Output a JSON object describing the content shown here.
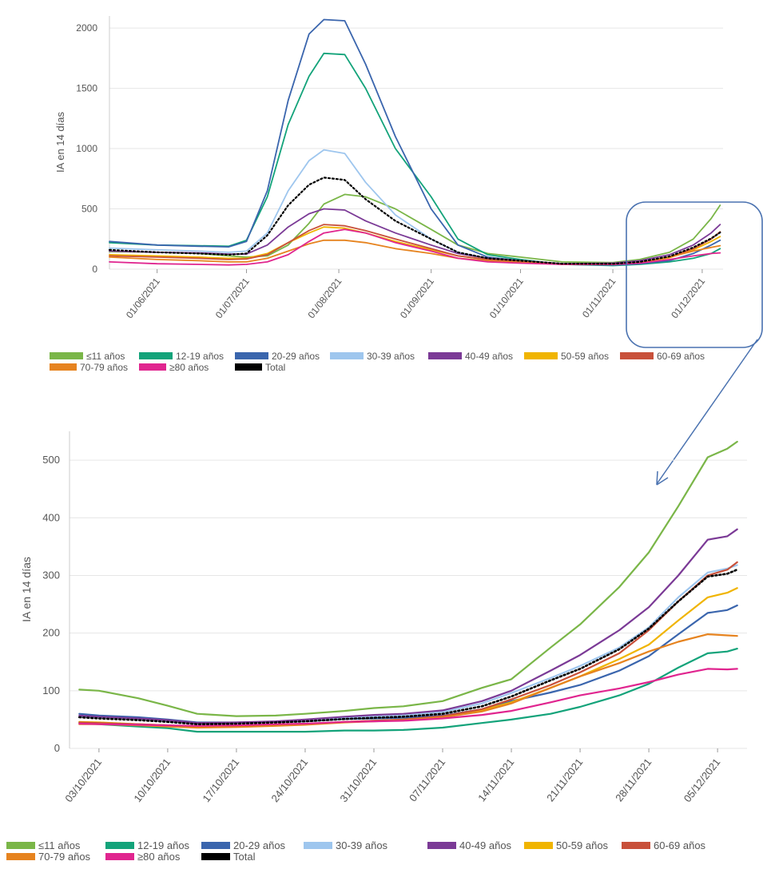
{
  "colors": {
    "<11": "#7ab648",
    "12-19": "#13a37a",
    "20-29": "#3a65ad",
    "30-39": "#9ec6ee",
    "40-49": "#7b3a96",
    "50-59": "#f0b400",
    "60-69": "#c8503a",
    "70-79": "#e6831f",
    ">=80": "#e0258f",
    "total": "#000000"
  },
  "legend": {
    "items": [
      {
        "key": "<11",
        "label": "≤11 años"
      },
      {
        "key": "12-19",
        "label": "12-19 años"
      },
      {
        "key": "20-29",
        "label": "20-29 años"
      },
      {
        "key": "30-39",
        "label": "30-39 años"
      },
      {
        "key": "40-49",
        "label": "40-49 años"
      },
      {
        "key": "50-59",
        "label": "50-59 años"
      },
      {
        "key": "60-69",
        "label": "60-69 años"
      },
      {
        "key": "70-79",
        "label": "70-79 años"
      },
      {
        "key": ">=80",
        "label": "≥80 años"
      },
      {
        "key": "total",
        "label": "Total"
      }
    ]
  },
  "chart_data": [
    {
      "type": "line",
      "title": "",
      "ylabel": "IA en 14 días",
      "xlabel": "",
      "ylim": [
        0,
        2100
      ],
      "xlim": [
        "2021-05-16",
        "2021-12-08"
      ],
      "yticks": [
        0,
        500,
        1000,
        1500,
        2000
      ],
      "xticks": [
        "01/06/2021",
        "01/07/2021",
        "01/08/2021",
        "01/09/2021",
        "01/10/2021",
        "01/11/2021",
        "01/12/2021"
      ],
      "x": [
        "2021-05-16",
        "2021-06-01",
        "2021-06-15",
        "2021-06-25",
        "2021-07-01",
        "2021-07-08",
        "2021-07-15",
        "2021-07-22",
        "2021-07-27",
        "2021-08-03",
        "2021-08-10",
        "2021-08-20",
        "2021-09-01",
        "2021-09-10",
        "2021-09-20",
        "2021-10-01",
        "2021-10-15",
        "2021-11-01",
        "2021-11-10",
        "2021-11-20",
        "2021-11-28",
        "2021-12-04",
        "2021-12-07"
      ],
      "series": [
        {
          "key": "<11",
          "name": "≤11 años",
          "values": [
            145,
            140,
            130,
            110,
            100,
            110,
            200,
            380,
            540,
            620,
            600,
            500,
            330,
            200,
            130,
            100,
            60,
            55,
            80,
            140,
            250,
            420,
            530
          ]
        },
        {
          "key": "12-19",
          "name": "12-19 años",
          "values": [
            220,
            200,
            195,
            190,
            240,
            600,
            1200,
            1600,
            1790,
            1780,
            1500,
            1000,
            600,
            250,
            120,
            80,
            40,
            30,
            40,
            60,
            90,
            130,
            170
          ]
        },
        {
          "key": "20-29",
          "name": "20-29 años",
          "values": [
            230,
            200,
            190,
            185,
            230,
            650,
            1400,
            1950,
            2070,
            2060,
            1700,
            1100,
            500,
            200,
            100,
            70,
            40,
            35,
            45,
            70,
            130,
            200,
            240
          ]
        },
        {
          "key": "30-39",
          "name": "30-39 años",
          "values": [
            175,
            160,
            150,
            140,
            150,
            300,
            650,
            900,
            990,
            960,
            720,
            450,
            250,
            140,
            90,
            70,
            45,
            45,
            60,
            100,
            170,
            250,
            300
          ]
        },
        {
          "key": "40-49",
          "name": "40-49 años",
          "values": [
            150,
            140,
            135,
            125,
            125,
            200,
            350,
            460,
            500,
            490,
            400,
            300,
            200,
            130,
            90,
            70,
            45,
            50,
            70,
            120,
            200,
            300,
            370
          ]
        },
        {
          "key": "50-59",
          "name": "50-59 años",
          "values": [
            120,
            110,
            100,
            90,
            90,
            130,
            220,
            300,
            350,
            340,
            300,
            230,
            160,
            110,
            80,
            65,
            40,
            40,
            55,
            95,
            160,
            230,
            270
          ]
        },
        {
          "key": "60-69",
          "name": "60-69 años",
          "values": [
            110,
            100,
            90,
            80,
            85,
            120,
            220,
            320,
            370,
            360,
            320,
            250,
            170,
            110,
            80,
            60,
            40,
            40,
            55,
            100,
            170,
            250,
            310
          ]
        },
        {
          "key": "70-79",
          "name": "70-79 años",
          "values": [
            100,
            80,
            70,
            60,
            60,
            90,
            150,
            210,
            240,
            240,
            220,
            170,
            130,
            90,
            70,
            55,
            40,
            40,
            55,
            100,
            150,
            180,
            195
          ]
        },
        {
          "key": ">=80",
          "name": "≥80 años",
          "values": [
            60,
            45,
            40,
            35,
            40,
            60,
            120,
            230,
            300,
            330,
            300,
            220,
            150,
            90,
            60,
            50,
            40,
            40,
            50,
            80,
            110,
            130,
            135
          ]
        },
        {
          "key": "total",
          "name": "Total",
          "values": [
            160,
            140,
            130,
            120,
            130,
            280,
            530,
            700,
            760,
            740,
            580,
            400,
            250,
            140,
            90,
            70,
            45,
            45,
            60,
            105,
            180,
            255,
            305
          ]
        }
      ]
    },
    {
      "type": "line",
      "title": "",
      "ylabel": "IA en 14 días",
      "xlabel": "",
      "ylim": [
        0,
        550
      ],
      "xlim": [
        "2021-09-30",
        "2021-12-08"
      ],
      "yticks": [
        0,
        100,
        200,
        300,
        400,
        500
      ],
      "xticks": [
        "03/10/2021",
        "10/10/2021",
        "17/10/2021",
        "24/10/2021",
        "31/10/2021",
        "07/11/2021",
        "14/11/2021",
        "21/11/2021",
        "28/11/2021",
        "05/12/2021"
      ],
      "x": [
        "2021-10-01",
        "2021-10-03",
        "2021-10-07",
        "2021-10-10",
        "2021-10-13",
        "2021-10-17",
        "2021-10-21",
        "2021-10-24",
        "2021-10-28",
        "2021-10-31",
        "2021-11-03",
        "2021-11-07",
        "2021-11-11",
        "2021-11-14",
        "2021-11-18",
        "2021-11-21",
        "2021-11-25",
        "2021-11-28",
        "2021-12-01",
        "2021-12-04",
        "2021-12-06",
        "2021-12-07"
      ],
      "series": [
        {
          "key": "<11",
          "name": "≤11 años",
          "values": [
            102,
            100,
            87,
            74,
            60,
            56,
            57,
            60,
            65,
            70,
            73,
            82,
            105,
            120,
            175,
            215,
            280,
            340,
            420,
            505,
            520,
            532
          ]
        },
        {
          "key": "12-19",
          "name": "12-19 años",
          "values": [
            44,
            42,
            38,
            35,
            29,
            29,
            29,
            29,
            31,
            31,
            32,
            36,
            44,
            50,
            60,
            72,
            92,
            112,
            140,
            165,
            168,
            173
          ]
        },
        {
          "key": "20-29",
          "name": "20-29 años",
          "values": [
            60,
            57,
            54,
            50,
            45,
            45,
            46,
            47,
            51,
            52,
            53,
            57,
            68,
            82,
            97,
            110,
            135,
            160,
            198,
            235,
            240,
            248
          ]
        },
        {
          "key": "30-39",
          "name": "30-39 años",
          "values": [
            56,
            54,
            51,
            48,
            43,
            44,
            46,
            48,
            53,
            55,
            57,
            63,
            78,
            96,
            122,
            143,
            175,
            210,
            262,
            305,
            312,
            318
          ]
        },
        {
          "key": "40-49",
          "name": "40-49 años",
          "values": [
            57,
            55,
            52,
            49,
            44,
            45,
            47,
            50,
            55,
            58,
            60,
            66,
            82,
            100,
            135,
            162,
            205,
            245,
            300,
            362,
            368,
            380
          ]
        },
        {
          "key": "50-59",
          "name": "50-59 años",
          "values": [
            46,
            45,
            42,
            40,
            37,
            38,
            40,
            42,
            46,
            48,
            50,
            55,
            66,
            80,
            105,
            125,
            155,
            180,
            222,
            262,
            270,
            278
          ]
        },
        {
          "key": "60-69",
          "name": "60-69 años",
          "values": [
            45,
            44,
            42,
            40,
            37,
            38,
            40,
            42,
            46,
            48,
            50,
            56,
            68,
            85,
            110,
            132,
            165,
            205,
            255,
            300,
            310,
            323
          ]
        },
        {
          "key": "70-79",
          "name": "70-79 años",
          "values": [
            42,
            42,
            40,
            38,
            36,
            37,
            39,
            41,
            45,
            47,
            49,
            54,
            64,
            78,
            105,
            125,
            148,
            168,
            185,
            198,
            196,
            195
          ]
        },
        {
          "key": ">=80",
          "name": "≥80 años",
          "values": [
            43,
            42,
            41,
            40,
            39,
            40,
            42,
            43,
            46,
            47,
            48,
            52,
            58,
            65,
            80,
            92,
            104,
            115,
            128,
            138,
            137,
            138
          ]
        },
        {
          "key": "total",
          "name": "Total",
          "values": [
            54,
            52,
            49,
            46,
            42,
            43,
            45,
            47,
            51,
            53,
            55,
            60,
            73,
            90,
            118,
            138,
            172,
            208,
            255,
            298,
            303,
            310
          ]
        }
      ]
    }
  ]
}
